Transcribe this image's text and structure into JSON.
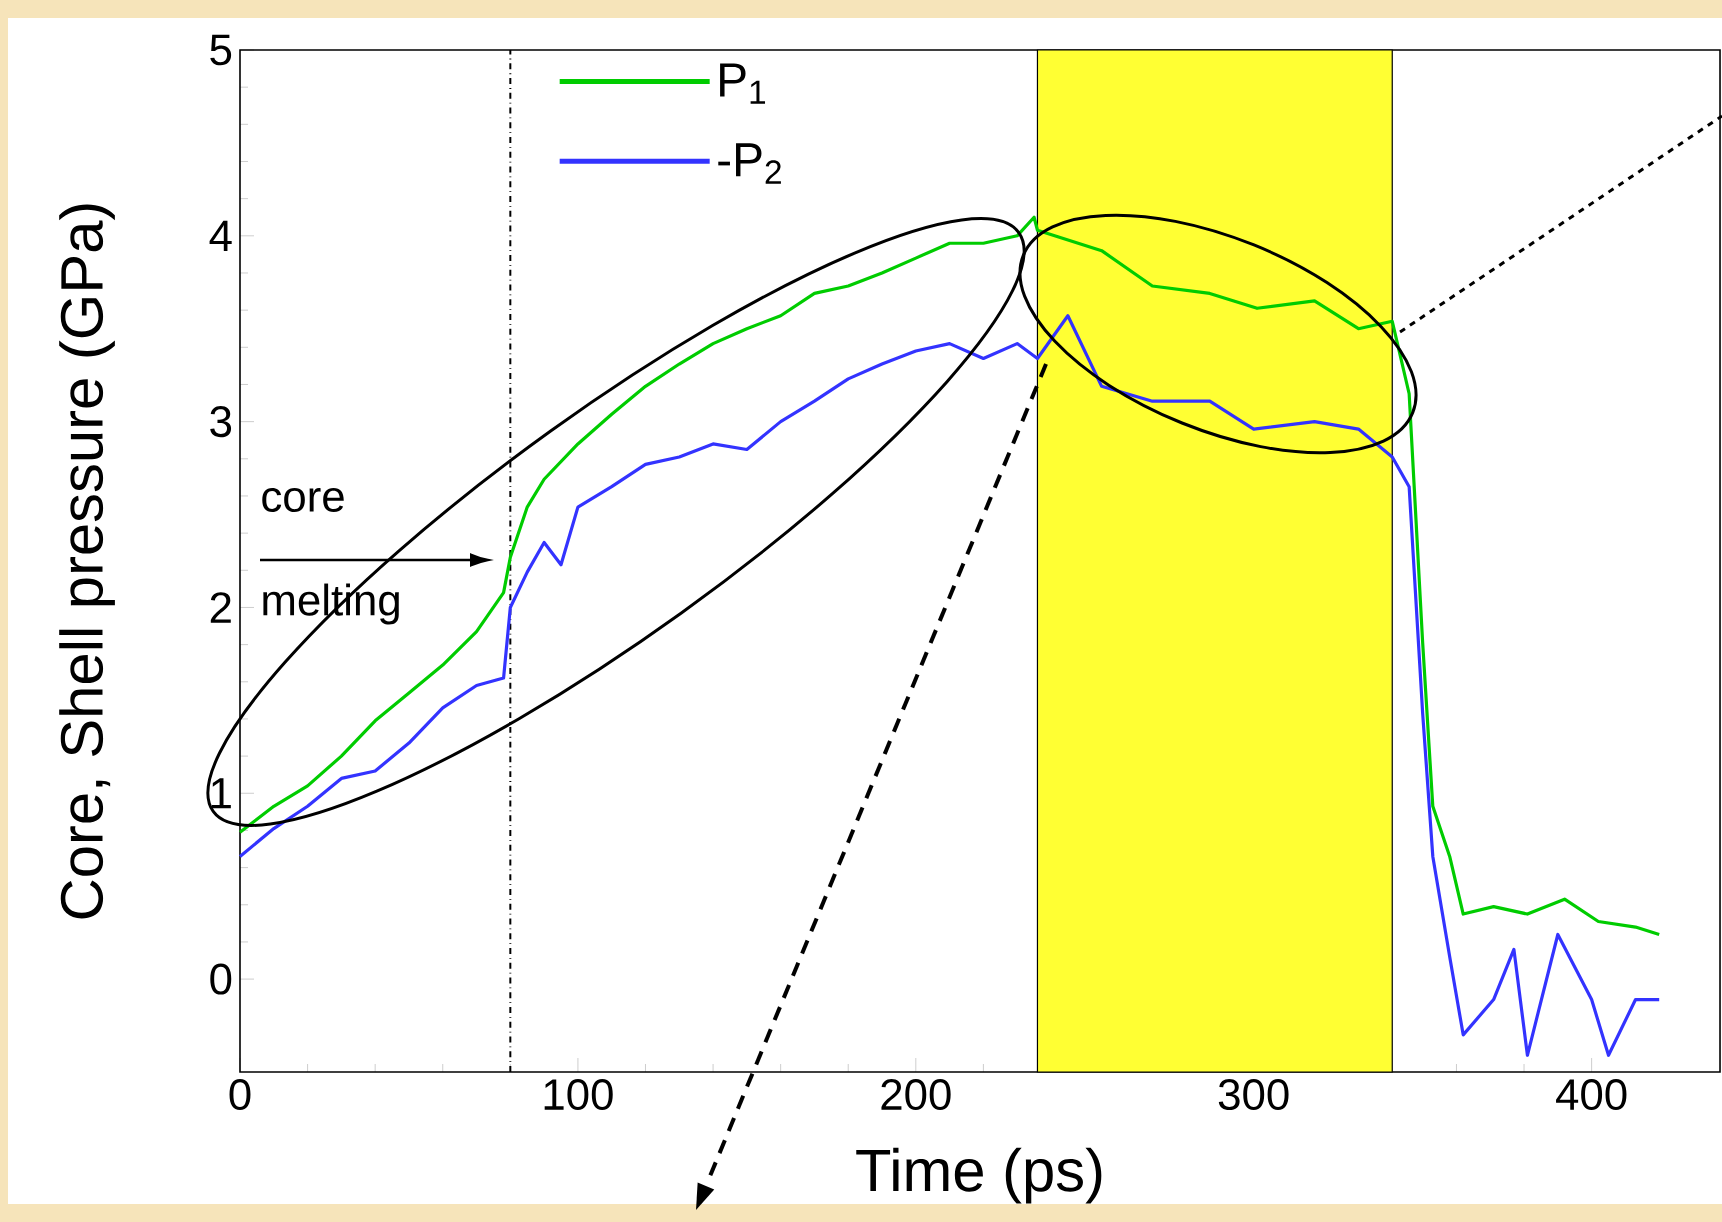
{
  "chart_data": {
    "type": "line",
    "xlabel": "Time (ps)",
    "ylabel": "Core, Shell pressure (GPa)",
    "xlim": [
      0,
      438
    ],
    "ylim": [
      -0.5,
      5
    ],
    "xticks": [
      0,
      100,
      200,
      300,
      400
    ],
    "yticks": [
      0,
      1,
      2,
      3,
      4,
      5
    ],
    "legend": "top left",
    "line_style": "solid",
    "marker": "none",
    "annotations": [
      "core",
      "melting"
    ],
    "ref_lines": [
      {
        "axis": "x",
        "value": 80,
        "color": "#000000",
        "line_style": "dashdot"
      }
    ],
    "bands": [
      {
        "axis": "x",
        "from": 236,
        "to": 341,
        "color": "#ffff33"
      }
    ],
    "series": [
      {
        "name": "P$_{1}$",
        "color": "#00cc00",
        "x": [
          0,
          10,
          20,
          30,
          40,
          50,
          60,
          70,
          78,
          80,
          85,
          90,
          100,
          110,
          120,
          130,
          140,
          150,
          160,
          170,
          180,
          190,
          200,
          210,
          220,
          230,
          235,
          236,
          255,
          270,
          287,
          301,
          318,
          331,
          341,
          346,
          350,
          353,
          358,
          362,
          371,
          381,
          392,
          402,
          413,
          420
        ],
        "values": [
          0.79,
          0.93,
          1.04,
          1.2,
          1.39,
          1.54,
          1.69,
          1.87,
          2.08,
          2.27,
          2.54,
          2.69,
          2.88,
          3.04,
          3.19,
          3.31,
          3.42,
          3.5,
          3.57,
          3.69,
          3.73,
          3.8,
          3.88,
          3.96,
          3.96,
          4.0,
          4.1,
          4.03,
          3.92,
          3.73,
          3.69,
          3.61,
          3.65,
          3.5,
          3.54,
          3.15,
          1.81,
          0.93,
          0.66,
          0.35,
          0.39,
          0.35,
          0.43,
          0.31,
          0.28,
          0.24
        ]
      },
      {
        "name": "-P$_{2}$",
        "color": "#3333ff",
        "x": [
          0,
          10,
          20,
          30,
          40,
          50,
          60,
          70,
          78,
          80,
          85,
          90,
          95,
          100,
          110,
          120,
          130,
          140,
          150,
          160,
          170,
          180,
          190,
          200,
          210,
          220,
          230,
          236,
          245,
          255,
          270,
          287,
          300,
          318,
          331,
          341,
          346,
          350,
          353,
          358,
          362,
          371,
          377,
          381,
          390,
          400,
          405,
          413,
          420
        ],
        "values": [
          0.66,
          0.81,
          0.93,
          1.08,
          1.12,
          1.27,
          1.46,
          1.58,
          1.62,
          2.0,
          2.19,
          2.35,
          2.23,
          2.54,
          2.65,
          2.77,
          2.81,
          2.88,
          2.85,
          3.0,
          3.11,
          3.23,
          3.31,
          3.38,
          3.42,
          3.34,
          3.42,
          3.34,
          3.57,
          3.19,
          3.11,
          3.11,
          2.96,
          3.0,
          2.96,
          2.81,
          2.65,
          1.43,
          0.66,
          0.12,
          -0.3,
          -0.11,
          0.16,
          -0.41,
          0.24,
          -0.11,
          -0.41,
          -0.11,
          -0.11
        ]
      }
    ]
  }
}
